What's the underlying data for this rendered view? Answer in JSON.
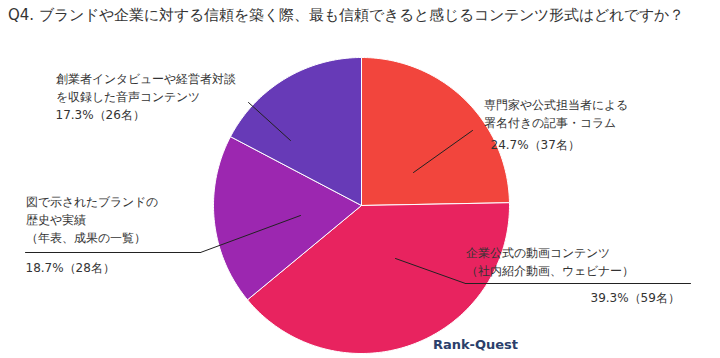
{
  "chart_data": {
    "type": "pie",
    "title": "Q4. ブランドや企業に対する信頼を築く際、最も信頼できると感じるコンテンツ形式はどれですか？",
    "categories": [
      "専門家や公式担当者による\n署名付きの記事・コラム",
      "企業公式の動画コンテンツ\n（社内紹介動画、ウェビナー）",
      "図で示されたブランドの\n歴史や実績\n（年表、成果の一覧）",
      "創業者インタビューや経営者対談\nを収録した音声コンテンツ"
    ],
    "values": [
      24.7,
      39.3,
      18.7,
      17.3
    ],
    "value_labels": [
      "24.7%（37名）",
      "39.3%（59名）",
      "18.7%（28名）",
      "17.3%（26名）"
    ],
    "colors": [
      "#f2453d",
      "#e8235f",
      "#9c27b0",
      "#673ab7"
    ],
    "data_labels": true,
    "caption": "Rank-Quest"
  }
}
